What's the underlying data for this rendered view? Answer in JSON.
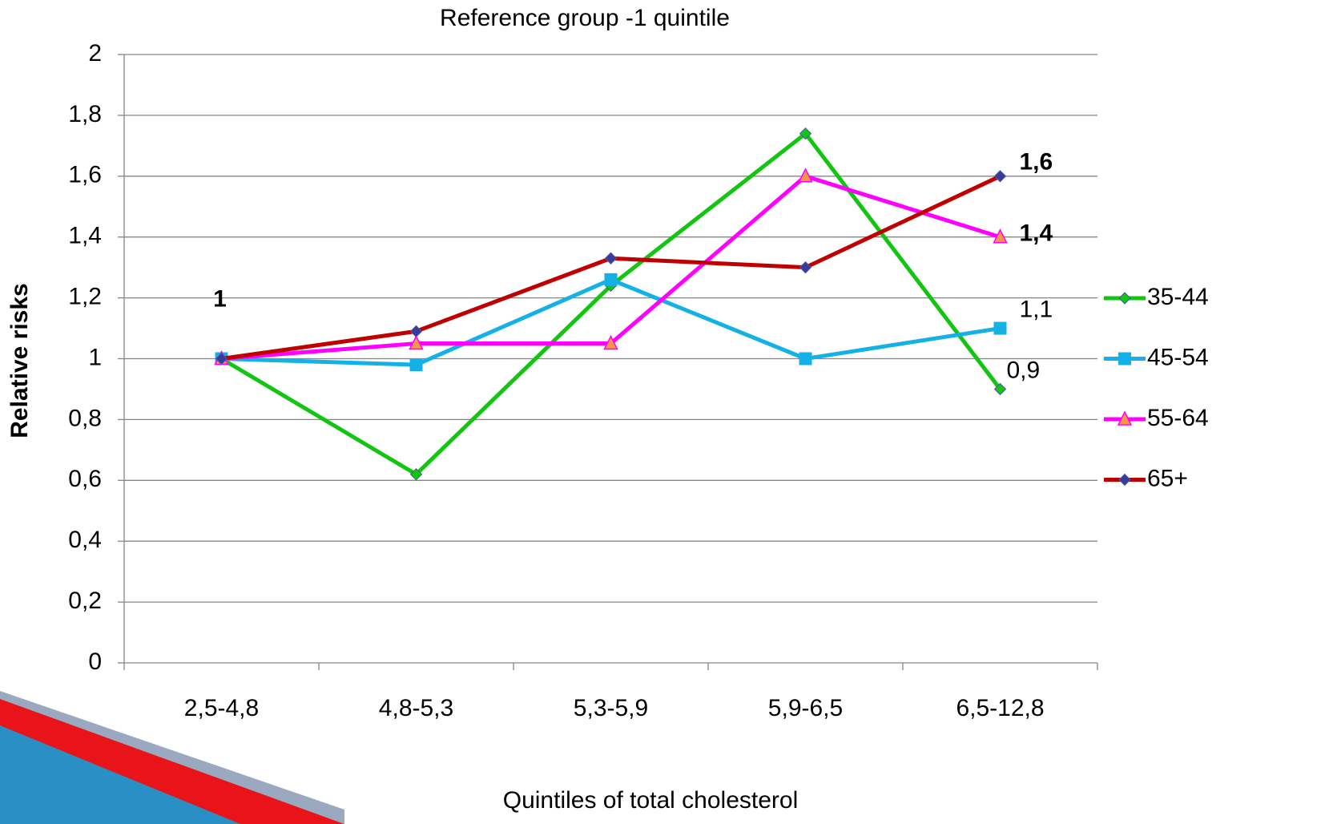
{
  "chart_data": {
    "type": "line",
    "title": "Reference group -1 quintile",
    "x_label": "Quintiles of total cholesterol",
    "y_label": "Relative risks",
    "categories": [
      "2,5-4,8",
      "4,8-5,3",
      "5,3-5,9",
      "5,9-6,5",
      "6,5-12,8"
    ],
    "series": [
      {
        "name": "35-44",
        "color": "#11c511",
        "marker": "diamond",
        "marker_color": "#11c511",
        "values": [
          1,
          0.62,
          1.24,
          1.74,
          0.9
        ],
        "value_labels": [
          null,
          null,
          null,
          null,
          "0,9"
        ]
      },
      {
        "name": "45-54",
        "color": "#14b1e7",
        "marker": "square",
        "marker_color": "#14b1e7",
        "values": [
          1,
          0.98,
          1.26,
          1.0,
          1.1
        ],
        "value_labels": [
          null,
          null,
          null,
          null,
          "1,1"
        ]
      },
      {
        "name": "55-64",
        "color": "#ff00ff",
        "marker": "triangle",
        "marker_color": "#f79646",
        "values": [
          1,
          1.05,
          1.05,
          1.6,
          1.4
        ],
        "value_labels": [
          null,
          null,
          null,
          null,
          "1,4"
        ]
      },
      {
        "name": "65+",
        "color": "#c00000",
        "marker": "diamond",
        "marker_color": "#3a3a9a",
        "values": [
          1,
          1.09,
          1.33,
          1.3,
          1.6
        ],
        "value_labels": [
          "1",
          null,
          null,
          null,
          "1,6"
        ]
      }
    ],
    "ylim": [
      0,
      2
    ],
    "yticks": [
      0,
      {
        "value": 0.2,
        "label": "0,2"
      },
      {
        "value": 0.4,
        "label": "0,4"
      },
      {
        "value": 0.6,
        "label": "0,6"
      },
      {
        "value": 0.8,
        "label": "0,8"
      },
      1,
      {
        "value": 1.2,
        "label": "1,2"
      },
      {
        "value": 1.4,
        "label": "1,4"
      },
      {
        "value": 1.6,
        "label": "1,6"
      },
      {
        "value": 1.8,
        "label": "1,8"
      },
      2
    ],
    "grid": true,
    "legend": "right"
  }
}
